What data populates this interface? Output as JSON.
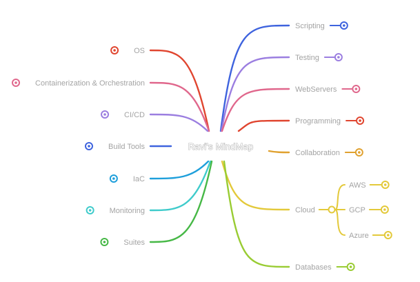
{
  "mindmap": {
    "root": "Ravi's MindMap",
    "left": [
      {
        "label": "OS",
        "color": "#e0452f"
      },
      {
        "label": "Containerization & Orchestration",
        "color": "#e0678c"
      },
      {
        "label": "CI/CD",
        "color": "#9b7ee0"
      },
      {
        "label": "Build Tools",
        "color": "#3e63de"
      },
      {
        "label": "IaC",
        "color": "#1e9fdb"
      },
      {
        "label": "Monitoring",
        "color": "#3fcbcb"
      },
      {
        "label": "Suites",
        "color": "#46b846"
      }
    ],
    "right": [
      {
        "label": "Scripting",
        "color": "#3e63de"
      },
      {
        "label": "Testing",
        "color": "#9b7ee0"
      },
      {
        "label": "WebServers",
        "color": "#e0678c"
      },
      {
        "label": "Programming",
        "color": "#e0452f"
      },
      {
        "label": "Collaboration",
        "color": "#e0a12f"
      },
      {
        "label": "Cloud",
        "color": "#e3c93a",
        "children": [
          "AWS",
          "GCP",
          "Azure"
        ]
      },
      {
        "label": "Databases",
        "color": "#99cc33"
      }
    ]
  }
}
